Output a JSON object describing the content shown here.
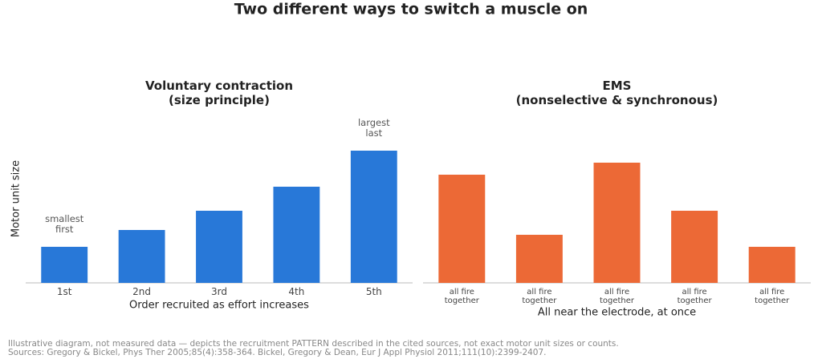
{
  "title": "Two different ways to switch a muscle on",
  "notes": [
    "Illustrative diagram, not measured data — depicts the recruitment PATTERN described in the cited sources, not exact motor unit sizes or counts.",
    "Sources: Gregory & Bickel, Phys Ther 2005;85(4):358-364. Bickel, Gregory & Dean, Eur J Appl Physiol 2011;111(10):2399-2407."
  ],
  "chart_data": [
    {
      "type": "bar",
      "title": [
        "Voluntary contraction",
        "(size principle)"
      ],
      "ylabel": "Motor unit size",
      "xlabel": "Order recruited as effort increases",
      "categories": [
        [
          "1st"
        ],
        [
          "2nd"
        ],
        [
          "3rd"
        ],
        [
          "4th"
        ],
        [
          "5th"
        ]
      ],
      "values": [
        3,
        4.4,
        6,
        8,
        11
      ],
      "color": "#2878d8",
      "ylim": [
        0,
        13
      ],
      "annotations": [
        {
          "index": 0,
          "text": [
            "smallest",
            "first"
          ]
        },
        {
          "index": 4,
          "text": [
            "largest",
            "last"
          ]
        }
      ]
    },
    {
      "type": "bar",
      "title": [
        "EMS",
        "(nonselective & synchronous)"
      ],
      "xlabel": "All near the electrode, at once",
      "categories": [
        [
          "all fire",
          "together"
        ],
        [
          "all fire",
          "together"
        ],
        [
          "all fire",
          "together"
        ],
        [
          "all fire",
          "together"
        ],
        [
          "all fire",
          "together"
        ]
      ],
      "values": [
        9,
        4,
        10,
        6,
        3
      ],
      "color": "#ec6936",
      "ylim": [
        0,
        13
      ]
    }
  ]
}
